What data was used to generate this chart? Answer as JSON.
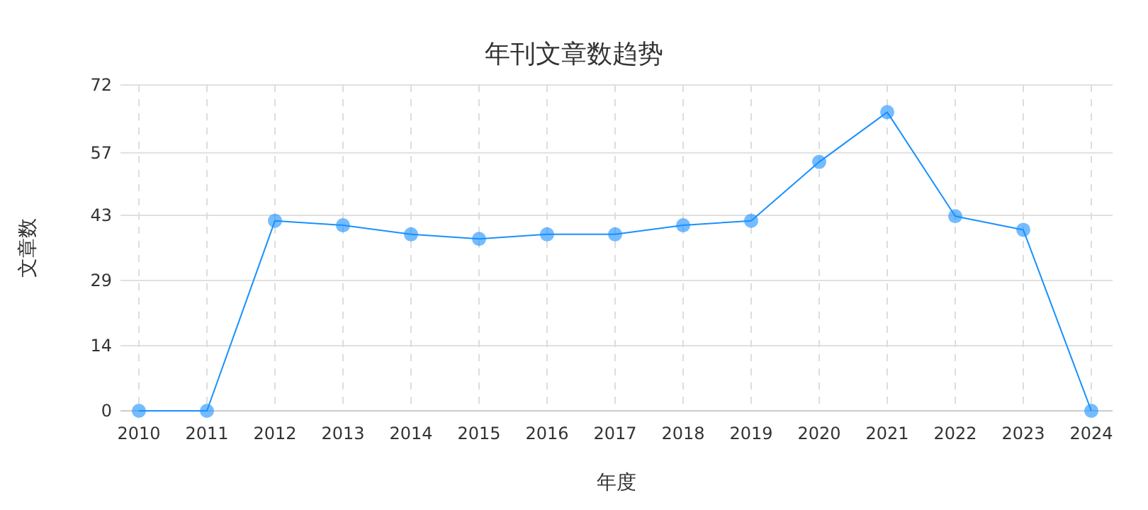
{
  "chart_data": {
    "type": "line",
    "title": "年刊文章数趋势",
    "xlabel": "年度",
    "ylabel": "文章数",
    "categories": [
      "2010",
      "2011",
      "2012",
      "2013",
      "2014",
      "2015",
      "2016",
      "2017",
      "2018",
      "2019",
      "2020",
      "2021",
      "2022",
      "2023",
      "2024"
    ],
    "series": [
      {
        "color": "#1890ff",
        "values": [
          0,
          0,
          42,
          41,
          39,
          38,
          39,
          39,
          41,
          42,
          55,
          66,
          43,
          40,
          0
        ]
      }
    ],
    "ylim": [
      0,
      72
    ],
    "yticks": [
      0,
      {
        "value": 14.4,
        "label": "14"
      },
      {
        "value": 28.8,
        "label": "29"
      },
      {
        "value": 43.2,
        "label": "43"
      },
      57,
      72
    ],
    "grid": true,
    "marker": "circle",
    "line_style": "solid"
  }
}
